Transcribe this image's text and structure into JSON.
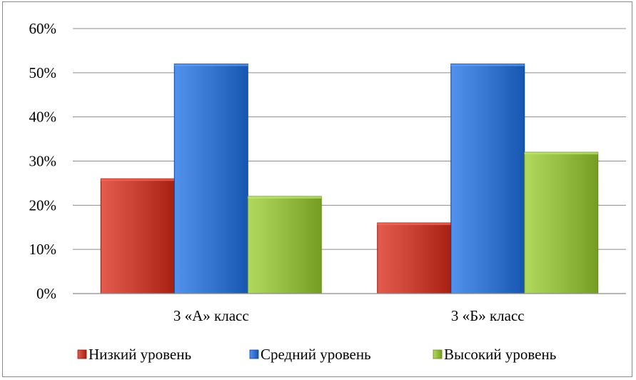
{
  "chart_data": {
    "type": "bar",
    "categories": [
      "3 «А» класс",
      "3 «Б» класс"
    ],
    "series": [
      {
        "name": "Низкий уровень",
        "values": [
          26,
          16
        ],
        "color": "#c0392b"
      },
      {
        "name": "Средний уровень",
        "values": [
          52,
          52
        ],
        "color": "#2f6fc9"
      },
      {
        "name": "Высокий уровень",
        "values": [
          22,
          32
        ],
        "color": "#8db63a"
      }
    ],
    "ylim": [
      0,
      60
    ],
    "yticks": [
      "0%",
      "10%",
      "20%",
      "30%",
      "40%",
      "50%",
      "60%"
    ],
    "grid": true,
    "legend": "bottom"
  }
}
